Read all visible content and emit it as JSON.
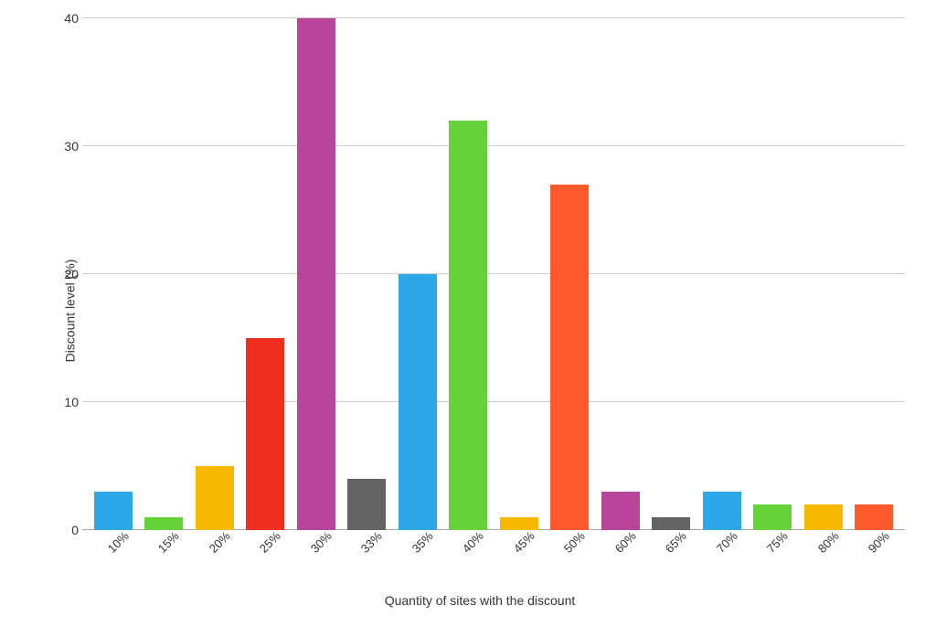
{
  "chart": {
    "type": "bar",
    "ylabel": "Discount level (%)",
    "xlabel": "Quantity of sites with the discount",
    "label_fontsize": 14,
    "tick_fontsize": 14,
    "ylim": [
      0,
      40
    ],
    "yticks": [
      0,
      10,
      20,
      30,
      40
    ],
    "background_color": "#ffffff",
    "grid_color": "#cccccc",
    "baseline_color": "#aaaaaa",
    "bar_width": 0.76,
    "categories": [
      "10%",
      "15%",
      "20%",
      "25%",
      "30%",
      "33%",
      "35%",
      "40%",
      "45%",
      "50%",
      "60%",
      "65%",
      "70%",
      "75%",
      "80%",
      "90%"
    ],
    "values": [
      3,
      1,
      5,
      15,
      40,
      4,
      20,
      32,
      1,
      27,
      3,
      1,
      3,
      2,
      2,
      2
    ],
    "bar_colors": [
      "#2ca8e8",
      "#65d23a",
      "#f7b900",
      "#ef2e1f",
      "#b9459a",
      "#636363",
      "#2ca8e8",
      "#65d23a",
      "#f7b900",
      "#ff5a2e",
      "#b9459a",
      "#636363",
      "#2ca8e8",
      "#65d23a",
      "#f7b900",
      "#ff5a2e"
    ]
  }
}
